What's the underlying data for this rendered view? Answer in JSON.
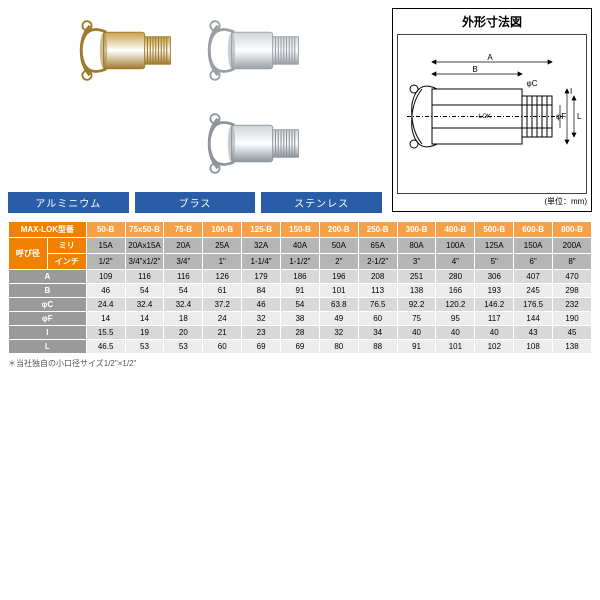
{
  "diagram": {
    "title": "外形寸法図",
    "unit": "(単位：mm)",
    "labels": {
      "A": "A",
      "B": "B",
      "phiC": "φC",
      "phiF": "φF",
      "I": "I",
      "L": "L",
      "brand": "-LOK"
    }
  },
  "materials": [
    {
      "label": "アルミニウム",
      "body": "#d0d4d8",
      "shade": "#9aa0a6"
    },
    {
      "label": "ブラス",
      "body": "#c9a24a",
      "shade": "#a07a2a"
    },
    {
      "label": "ステンレス",
      "body": "#cfd3d6",
      "shade": "#8e969c"
    }
  ],
  "arrangement": [
    1,
    0,
    null,
    2
  ],
  "table": {
    "header_model": "MAX-LOK型番",
    "header_size": "呼び径",
    "header_mm": "ミリ",
    "header_inch": "インチ",
    "models": [
      "50-B",
      "75x50-B",
      "75-B",
      "100-B",
      "125-B",
      "150-B",
      "200-B",
      "250-B",
      "300-B",
      "400-B",
      "500-B",
      "600-B",
      "800-B"
    ],
    "sizes_mm": [
      "15A",
      "20Ax15A",
      "20A",
      "25A",
      "32A",
      "40A",
      "50A",
      "65A",
      "80A",
      "100A",
      "125A",
      "150A",
      "200A"
    ],
    "sizes_in": [
      "1/2\"",
      "3/4\"x1/2\"",
      "3/4\"",
      "1\"",
      "1-1/4\"",
      "1-1/2\"",
      "2\"",
      "2-1/2\"",
      "3\"",
      "4\"",
      "5\"",
      "6\"",
      "8\""
    ],
    "dims": [
      {
        "name": "A",
        "values": [
          "109",
          "116",
          "116",
          "126",
          "179",
          "186",
          "196",
          "208",
          "251",
          "280",
          "306",
          "407",
          "470"
        ]
      },
      {
        "name": "B",
        "values": [
          "46",
          "54",
          "54",
          "61",
          "84",
          "91",
          "101",
          "113",
          "138",
          "166",
          "193",
          "245",
          "298"
        ]
      },
      {
        "name": "φC",
        "values": [
          "24.4",
          "32.4",
          "32.4",
          "37.2",
          "46",
          "54",
          "63.8",
          "76.5",
          "92.2",
          "120.2",
          "146.2",
          "176.5",
          "232"
        ]
      },
      {
        "name": "φF",
        "values": [
          "14",
          "14",
          "18",
          "24",
          "32",
          "38",
          "49",
          "60",
          "75",
          "95",
          "117",
          "144",
          "190"
        ]
      },
      {
        "name": "I",
        "values": [
          "15.5",
          "19",
          "20",
          "21",
          "23",
          "28",
          "32",
          "34",
          "40",
          "40",
          "40",
          "43",
          "45"
        ]
      },
      {
        "name": "L",
        "values": [
          "46.5",
          "53",
          "53",
          "60",
          "69",
          "69",
          "80",
          "88",
          "91",
          "101",
          "102",
          "108",
          "138"
        ]
      }
    ],
    "footnote": "＊当社独自の小口径サイズ1/2\"×1/2\""
  }
}
